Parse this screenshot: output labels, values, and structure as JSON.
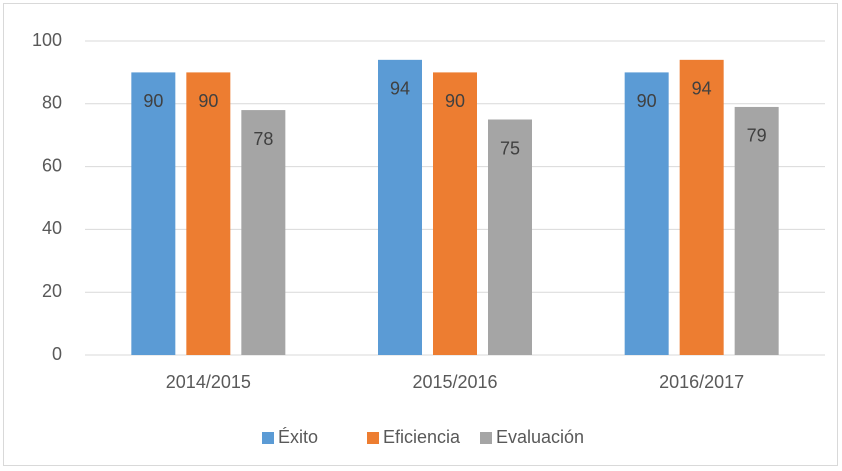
{
  "chart_data": {
    "type": "bar",
    "categories": [
      "2014/2015",
      "2015/2016",
      "2016/2017"
    ],
    "series": [
      {
        "name": "Éxito",
        "color": "#5b9bd5",
        "values": [
          90,
          94,
          90
        ]
      },
      {
        "name": "Eficiencia",
        "color": "#ed7d31",
        "values": [
          90,
          90,
          94
        ]
      },
      {
        "name": "Evaluación",
        "color": "#a5a5a5",
        "values": [
          78,
          75,
          79
        ]
      }
    ],
    "ylim": [
      0,
      100
    ],
    "yticks": [
      0,
      20,
      40,
      60,
      80,
      100
    ],
    "grid": true,
    "legend": "bottom"
  }
}
